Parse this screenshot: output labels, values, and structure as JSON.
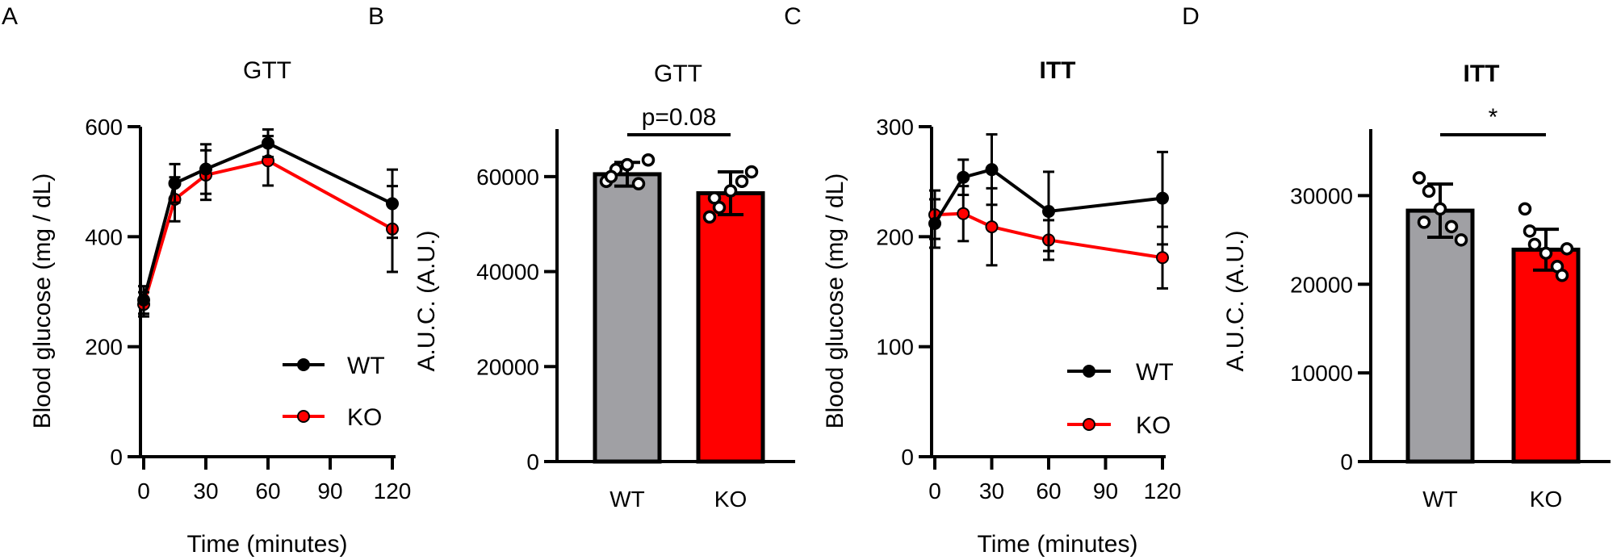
{
  "figure": {
    "colors": {
      "wt": "#000000",
      "ko": "#ff0000",
      "wt_bar": "#a0a0a4",
      "ko_bar": "#ff0000",
      "axis": "#000000"
    }
  },
  "chart_data": [
    {
      "panel": "A",
      "type": "line",
      "title": "GTT",
      "xlabel": "Time (minutes)",
      "ylabel": "Blood glucose (mg / dL)",
      "x": [
        0,
        15,
        30,
        60,
        120
      ],
      "xticks": [
        "0",
        "30",
        "60",
        "90",
        "120"
      ],
      "xlim": [
        0,
        120
      ],
      "yticks": [
        "0",
        "200",
        "400",
        "600"
      ],
      "ylim": [
        0,
        600
      ],
      "series": [
        {
          "name": "WT",
          "color": "#000000",
          "values": [
            285,
            497,
            523,
            570,
            460
          ],
          "err": [
            25,
            35,
            45,
            25,
            62
          ]
        },
        {
          "name": "KO",
          "color": "#ff0000",
          "values": [
            277,
            468,
            512,
            538,
            414
          ],
          "err": [
            22,
            40,
            45,
            45,
            78
          ]
        }
      ],
      "legend": "bottom-right"
    },
    {
      "panel": "B",
      "type": "bar",
      "title": "GTT",
      "ylabel": "A.U.C. (A.U.)",
      "categories": [
        "WT",
        "KO"
      ],
      "values": [
        60500,
        56500
      ],
      "err": [
        2500,
        4500
      ],
      "points": [
        [
          59000,
          61500,
          62500,
          58500,
          63500,
          60000
        ],
        [
          51500,
          53500,
          57000,
          59000,
          61000,
          55500
        ]
      ],
      "yticks": [
        "0",
        "20000",
        "40000",
        "60000"
      ],
      "ylim": [
        0,
        70000
      ],
      "annotation": "p=0.08"
    },
    {
      "panel": "C",
      "type": "line",
      "title": "ITT",
      "xlabel": "Time (minutes)",
      "ylabel": "Blood glucose (mg / dL)",
      "x": [
        0,
        15,
        30,
        60,
        120
      ],
      "xticks": [
        "0",
        "30",
        "60",
        "90",
        "120"
      ],
      "xlim": [
        0,
        120
      ],
      "yticks": [
        "0",
        "100",
        "200",
        "300"
      ],
      "ylim": [
        0,
        300
      ],
      "series": [
        {
          "name": "WT",
          "color": "#000000",
          "values": [
            212,
            254,
            261,
            223,
            235
          ],
          "err": [
            22,
            16,
            32,
            36,
            42
          ]
        },
        {
          "name": "KO",
          "color": "#ff0000",
          "values": [
            220,
            221,
            209,
            197,
            181
          ],
          "err": [
            22,
            25,
            35,
            18,
            28
          ]
        }
      ],
      "legend": "bottom-right"
    },
    {
      "panel": "D",
      "type": "bar",
      "title": "ITT",
      "ylabel": "A.U.C. (A.U.)",
      "categories": [
        "WT",
        "KO"
      ],
      "values": [
        28300,
        23900
      ],
      "err": [
        3000,
        2300
      ],
      "points": [
        [
          32000,
          30500,
          28500,
          26500,
          25000,
          27000
        ],
        [
          28500,
          24500,
          23500,
          22000,
          24000,
          26000,
          21000
        ]
      ],
      "yticks": [
        "0",
        "10000",
        "20000",
        "30000"
      ],
      "ylim": [
        0,
        37500
      ],
      "annotation": "*"
    }
  ]
}
